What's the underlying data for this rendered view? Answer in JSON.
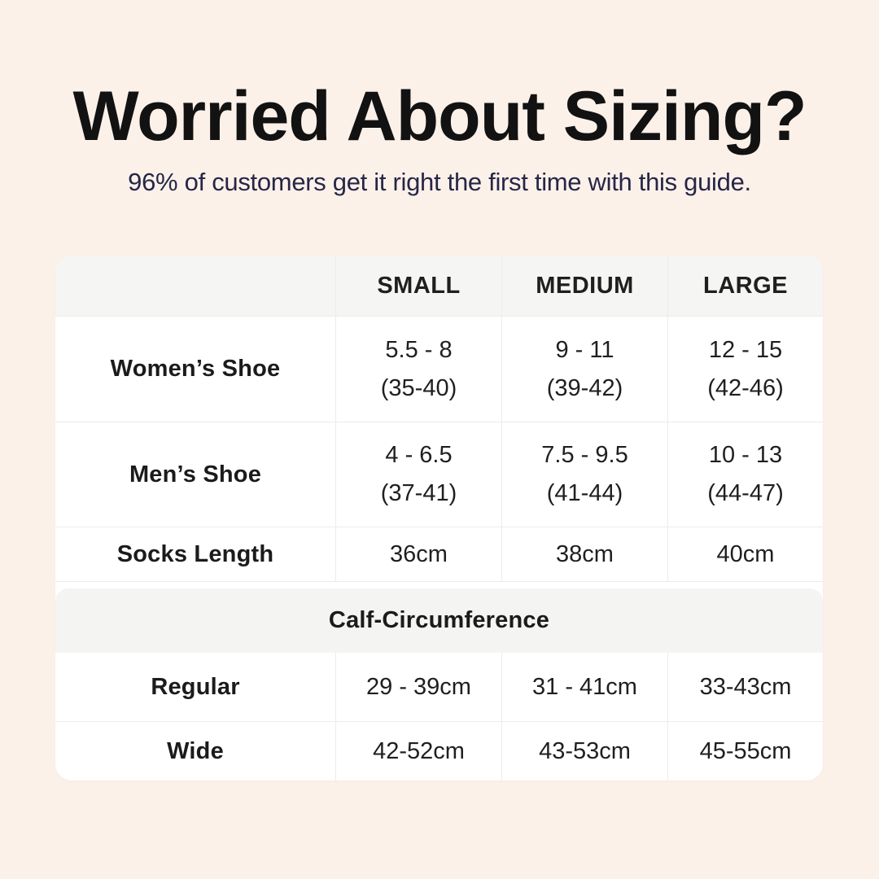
{
  "title": "Worried About Sizing?",
  "subtitle": "96% of customers get it right the first time with this guide.",
  "colors": {
    "background": "#FCF1E9",
    "card": "#FFFFFF",
    "header_band": "#F5F5F4",
    "section_band": "#F4F4F3",
    "divider": "#ECECEC",
    "title_text": "#121212",
    "subtitle_text": "#262647",
    "table_text": "#1B1B1B"
  },
  "chart_data": {
    "type": "table",
    "columns": [
      "",
      "SMALL",
      "MEDIUM",
      "LARGE"
    ],
    "rows": [
      {
        "label": "Women’s Shoe",
        "cells": [
          [
            "5.5 - 8",
            "(35-40)"
          ],
          [
            "9 - 11",
            "(39-42)"
          ],
          [
            "12 - 15",
            "(42-46)"
          ]
        ]
      },
      {
        "label": "Men’s Shoe",
        "cells": [
          [
            "4 - 6.5",
            "(37-41)"
          ],
          [
            "7.5 - 9.5",
            "(41-44)"
          ],
          [
            "10 - 13",
            "(44-47)"
          ]
        ]
      },
      {
        "label": "Socks Length",
        "cells": [
          [
            "36cm"
          ],
          [
            "38cm"
          ],
          [
            "40cm"
          ]
        ]
      }
    ],
    "section_header": "Calf-Circumference",
    "section_rows": [
      {
        "label": "Regular",
        "cells": [
          [
            "29 - 39cm"
          ],
          [
            "31 - 41cm"
          ],
          [
            "33-43cm"
          ]
        ]
      },
      {
        "label": "Wide",
        "cells": [
          [
            "42-52cm"
          ],
          [
            "43-53cm"
          ],
          [
            "45-55cm"
          ]
        ]
      }
    ]
  }
}
